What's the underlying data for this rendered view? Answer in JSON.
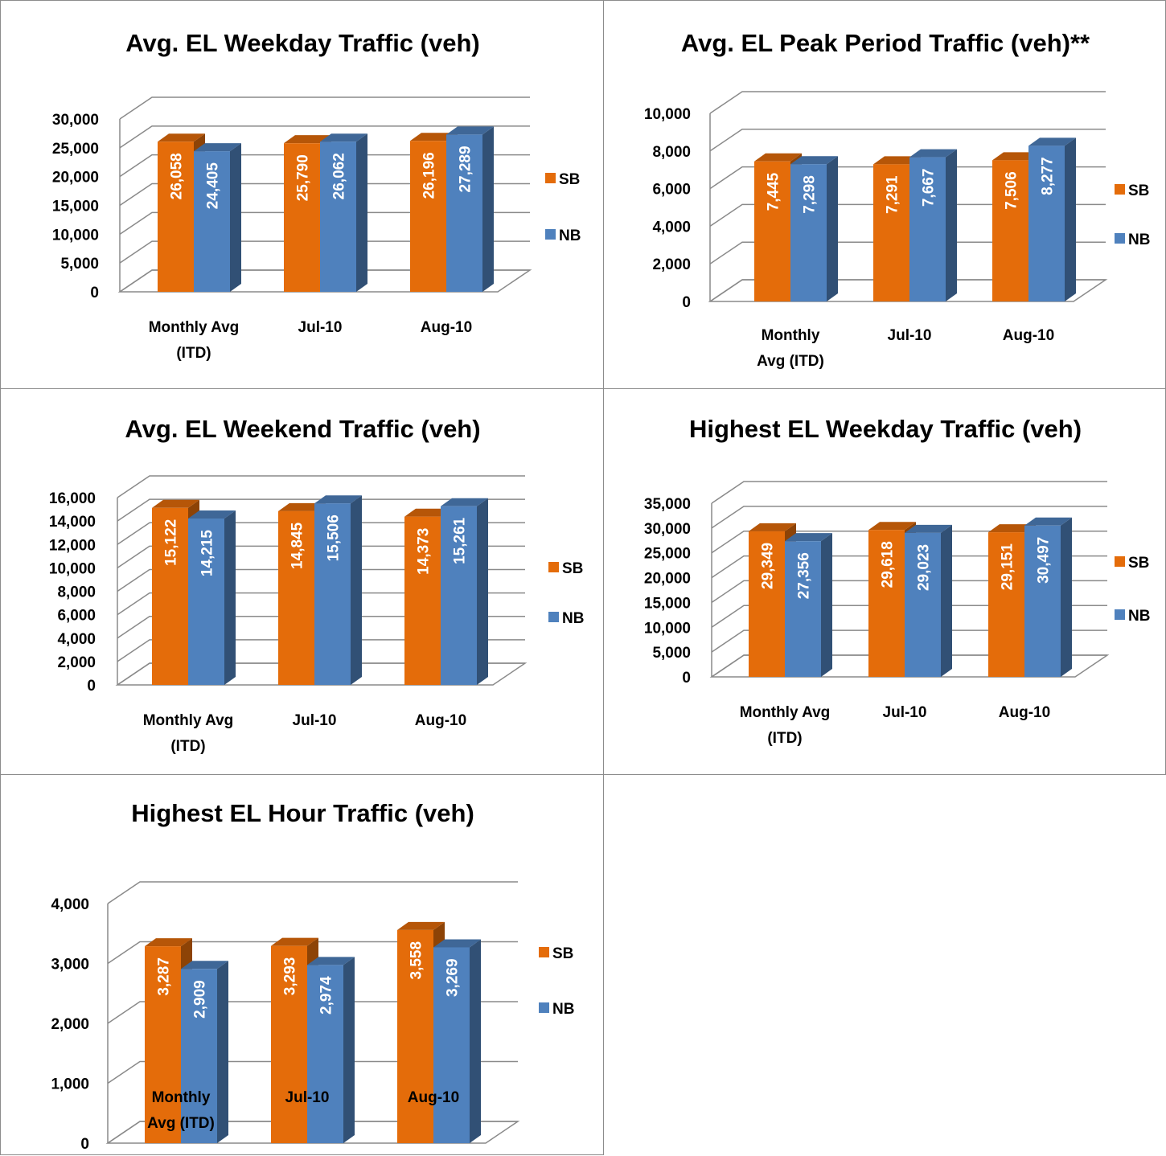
{
  "colors": {
    "SB": "#E46C0A",
    "NB": "#4F81BD"
  },
  "chart_data": [
    {
      "type": "bar",
      "title": "Avg. EL Weekday Traffic (veh)",
      "categories": [
        "Monthly Avg (ITD)",
        "Jul-10",
        "Aug-10"
      ],
      "series": [
        {
          "name": "SB",
          "values": [
            26058,
            25790,
            26196
          ],
          "labels": [
            "26,058",
            "25,790",
            "26,196"
          ]
        },
        {
          "name": "NB",
          "values": [
            24405,
            26062,
            27289
          ],
          "labels": [
            "24,405",
            "26,062",
            "27,289"
          ]
        }
      ],
      "ylim": [
        0,
        30000
      ],
      "yticks": [
        "0",
        "5,000",
        "10,000",
        "15,000",
        "20,000",
        "25,000",
        "30,000"
      ],
      "grid": true,
      "legend": "right"
    },
    {
      "type": "bar",
      "title": "Avg. EL Peak Period Traffic (veh)**",
      "categories": [
        "Monthly Avg (ITD)",
        "Jul-10",
        "Aug-10"
      ],
      "series": [
        {
          "name": "SB",
          "values": [
            7445,
            7291,
            7506
          ],
          "labels": [
            "7,445",
            "7,291",
            "7,506"
          ]
        },
        {
          "name": "NB",
          "values": [
            7298,
            7667,
            8277
          ],
          "labels": [
            "7,298",
            "7,667",
            "8,277"
          ]
        }
      ],
      "ylim": [
        0,
        10000
      ],
      "yticks": [
        "0",
        "2,000",
        "4,000",
        "6,000",
        "8,000",
        "10,000"
      ],
      "grid": true,
      "legend": "right"
    },
    {
      "type": "bar",
      "title": "Avg. EL Weekend Traffic (veh)",
      "categories": [
        "Monthly Avg (ITD)",
        "Jul-10",
        "Aug-10"
      ],
      "series": [
        {
          "name": "SB",
          "values": [
            15122,
            14845,
            14373
          ],
          "labels": [
            "15,122",
            "14,845",
            "14,373"
          ]
        },
        {
          "name": "NB",
          "values": [
            14215,
            15506,
            15261
          ],
          "labels": [
            "14,215",
            "15,506",
            "15,261"
          ]
        }
      ],
      "ylim": [
        0,
        16000
      ],
      "yticks": [
        "0",
        "2,000",
        "4,000",
        "6,000",
        "8,000",
        "10,000",
        "12,000",
        "14,000",
        "16,000"
      ],
      "grid": true,
      "legend": "right"
    },
    {
      "type": "bar",
      "title": "Highest EL Weekday Traffic (veh)",
      "categories": [
        "Monthly Avg (ITD)",
        "Jul-10",
        "Aug-10"
      ],
      "series": [
        {
          "name": "SB",
          "values": [
            29349,
            29618,
            29151
          ],
          "labels": [
            "29,349",
            "29,618",
            "29,151"
          ]
        },
        {
          "name": "NB",
          "values": [
            27356,
            29023,
            30497
          ],
          "labels": [
            "27,356",
            "29,023",
            "30,497"
          ]
        }
      ],
      "ylim": [
        0,
        35000
      ],
      "yticks": [
        "0",
        "5,000",
        "10,000",
        "15,000",
        "20,000",
        "25,000",
        "30,000",
        "35,000"
      ],
      "grid": true,
      "legend": "right"
    },
    {
      "type": "bar",
      "title": "Highest EL Hour Traffic (veh)",
      "categories": [
        "Monthly Avg (ITD)",
        "Jul-10",
        "Aug-10"
      ],
      "series": [
        {
          "name": "SB",
          "values": [
            3287,
            3293,
            3558
          ],
          "labels": [
            "3,287",
            "3,293",
            "3,558"
          ]
        },
        {
          "name": "NB",
          "values": [
            2909,
            2974,
            3269
          ],
          "labels": [
            "2,909",
            "2,974",
            "3,269"
          ]
        }
      ],
      "ylim": [
        0,
        4000
      ],
      "yticks": [
        "0",
        "1,000",
        "2,000",
        "3,000",
        "4,000"
      ],
      "grid": true,
      "legend": "right"
    }
  ]
}
